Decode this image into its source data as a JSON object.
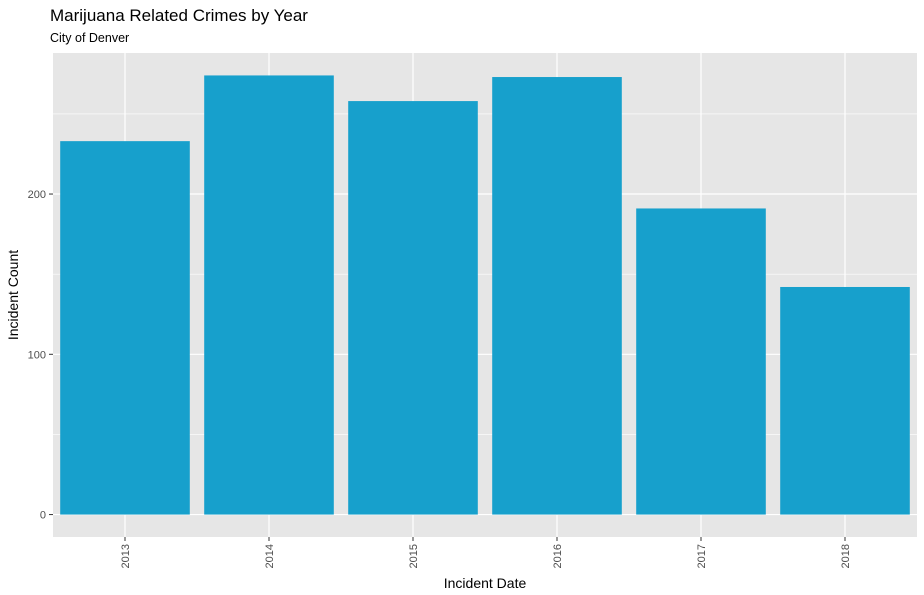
{
  "chart_data": {
    "type": "bar",
    "title": "Marijuana Related Crimes by Year",
    "subtitle": "City of Denver",
    "xlabel": "Incident Date",
    "ylabel": "Incident Count",
    "categories": [
      "2013",
      "2014",
      "2015",
      "2016",
      "2017",
      "2018"
    ],
    "values": [
      233,
      274,
      258,
      273,
      191,
      142
    ],
    "ylim": [
      -14,
      288
    ],
    "yticks": [
      0,
      100,
      200
    ],
    "grid": true,
    "bar_color": "#17a0cc",
    "panel_color": "#e6e6e6",
    "grid_color": "#ffffff"
  }
}
